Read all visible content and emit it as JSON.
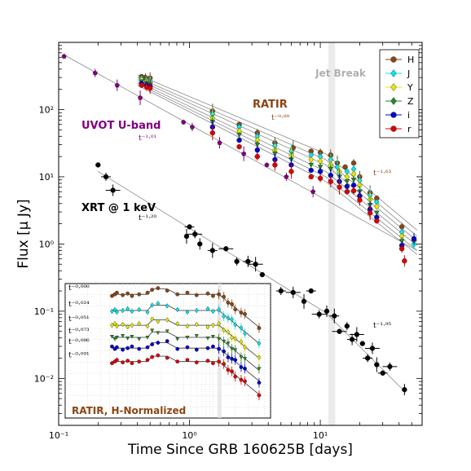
{
  "chart_data": {
    "type": "scatter",
    "xscale": "log",
    "yscale": "log",
    "xlim": [
      0.1,
      60
    ],
    "ylim": [
      0.002,
      1000
    ],
    "xlabel": "Time Since GRB 160625B [days]",
    "ylabel": "Flux [μ Jy]",
    "x_ticks": [
      0.1,
      1,
      10
    ],
    "x_tick_labels": [
      "10⁻¹",
      "10⁰",
      "10¹"
    ],
    "y_ticks": [
      0.01,
      0.1,
      1,
      10,
      100
    ],
    "y_tick_labels": [
      "10⁻²",
      "10⁻¹",
      "10⁰",
      "10¹",
      "10²"
    ],
    "jet_break": {
      "label": "Jet Break",
      "x_range": [
        11.5,
        13
      ]
    },
    "annotations": [
      {
        "text": "UVOT U-band",
        "color": "#800080"
      },
      {
        "text": "RATIR",
        "color": "#8b4513"
      },
      {
        "text": "XRT @ 1 keV",
        "color": "#000000"
      }
    ],
    "power_law_labels": [
      {
        "text": "t⁻¹·⁰¹",
        "color": "#800080"
      },
      {
        "text": "t⁻⁰·⁸⁸",
        "color": "#8b4513"
      },
      {
        "text": "t⁻¹·²⁰",
        "color": "#000000"
      },
      {
        "text": "t⁻¹·⁶³",
        "color": "#8b4513"
      },
      {
        "text": "t⁻¹·⁹⁵",
        "color": "#000000"
      }
    ],
    "legend": {
      "placement": "top-right",
      "entries": [
        {
          "name": "H",
          "color": "#8b4513"
        },
        {
          "name": "J",
          "color": "#00e5ee"
        },
        {
          "name": "Y",
          "color": "#e6e600"
        },
        {
          "name": "Z",
          "color": "#228b22"
        },
        {
          "name": "i",
          "color": "#0000cd"
        },
        {
          "name": "r",
          "color": "#dd0000"
        }
      ]
    },
    "fit_lines": [
      {
        "points": [
          [
            0.11,
            650
          ],
          [
            55,
            0.8
          ]
        ]
      },
      {
        "points": [
          [
            0.4,
            330
          ],
          [
            11,
            22
          ],
          [
            55,
            1.6
          ]
        ]
      },
      {
        "points": [
          [
            0.4,
            300
          ],
          [
            11,
            18
          ],
          [
            55,
            1.3
          ]
        ]
      },
      {
        "points": [
          [
            0.4,
            280
          ],
          [
            11,
            15
          ],
          [
            55,
            1.1
          ]
        ]
      },
      {
        "points": [
          [
            0.4,
            260
          ],
          [
            11,
            12
          ],
          [
            55,
            0.95
          ]
        ]
      },
      {
        "points": [
          [
            0.4,
            245
          ],
          [
            11,
            10
          ],
          [
            55,
            0.8
          ]
        ]
      },
      {
        "points": [
          [
            0.4,
            230
          ],
          [
            11,
            8.5
          ],
          [
            55,
            0.7
          ]
        ]
      },
      {
        "points": [
          [
            0.2,
            12
          ],
          [
            11,
            0.095
          ],
          [
            45,
            0.0062
          ]
        ]
      }
    ],
    "series": [
      {
        "name": "UVOT",
        "color": "#800080",
        "marker": "pentagon",
        "points": [
          [
            0.11,
            620
          ],
          [
            0.19,
            350
          ],
          [
            0.28,
            230
          ],
          [
            0.42,
            150
          ],
          [
            0.9,
            65
          ],
          [
            1.05,
            55
          ],
          [
            1.7,
            32
          ],
          [
            2.6,
            22
          ],
          [
            3.9,
            15
          ],
          [
            5.5,
            10
          ],
          [
            8.8,
            6
          ]
        ]
      },
      {
        "name": "XRT",
        "color": "#000000",
        "marker": "circle",
        "points": [
          [
            0.2,
            15
          ],
          [
            0.23,
            10
          ],
          [
            0.26,
            6.3
          ],
          [
            0.95,
            1.3
          ],
          [
            1.0,
            1.8
          ],
          [
            1.1,
            1.4
          ],
          [
            1.2,
            1.0
          ],
          [
            1.5,
            0.8
          ],
          [
            1.9,
            0.85
          ],
          [
            2.3,
            0.55
          ],
          [
            2.8,
            0.55
          ],
          [
            3.2,
            0.5
          ],
          [
            3.6,
            0.35
          ],
          [
            5.0,
            0.2
          ],
          [
            6.2,
            0.19
          ],
          [
            7.5,
            0.14
          ],
          [
            8.5,
            0.2
          ],
          [
            9.8,
            0.09
          ],
          [
            11.2,
            0.1
          ],
          [
            12.8,
            0.085
          ],
          [
            14.0,
            0.05
          ],
          [
            16.0,
            0.06
          ],
          [
            17.5,
            0.038
          ],
          [
            19.0,
            0.045
          ],
          [
            21.0,
            0.033
          ],
          [
            23.0,
            0.02
          ],
          [
            25.0,
            0.028
          ],
          [
            27.0,
            0.016
          ],
          [
            30.0,
            0.012
          ],
          [
            34.0,
            0.015
          ],
          [
            44.0,
            0.0068
          ]
        ]
      },
      {
        "name": "H",
        "color": "#8b4513",
        "marker": "circle",
        "points": [
          [
            0.43,
            310
          ],
          [
            0.46,
            300
          ],
          [
            0.5,
            295
          ],
          [
            1.5,
            95
          ],
          [
            2.4,
            60
          ],
          [
            3.3,
            45
          ],
          [
            4.5,
            32
          ],
          [
            6.2,
            27
          ],
          [
            8.5,
            24
          ],
          [
            10.0,
            23
          ],
          [
            12.0,
            21
          ],
          [
            13.5,
            16
          ],
          [
            15.5,
            14
          ],
          [
            18.0,
            16
          ],
          [
            20.0,
            10
          ],
          [
            24.0,
            5.8
          ],
          [
            27.0,
            4.8
          ],
          [
            42.0,
            1.8
          ],
          [
            52.0,
            1.15
          ]
        ]
      },
      {
        "name": "J",
        "color": "#00e5ee",
        "marker": "diamond",
        "points": [
          [
            0.43,
            290
          ],
          [
            0.47,
            275
          ],
          [
            0.5,
            265
          ],
          [
            1.5,
            85
          ],
          [
            2.4,
            55
          ],
          [
            3.3,
            40
          ],
          [
            4.5,
            29
          ],
          [
            6.0,
            24
          ],
          [
            8.5,
            21
          ],
          [
            10.0,
            20
          ],
          [
            12.0,
            18
          ],
          [
            13.5,
            14
          ],
          [
            16.0,
            12
          ],
          [
            18.0,
            13
          ],
          [
            20.0,
            8.8
          ],
          [
            24.0,
            5.3
          ],
          [
            27.0,
            4.2
          ],
          [
            42.0,
            1.5
          ],
          [
            52.0,
            1.0
          ]
        ]
      },
      {
        "name": "Y",
        "color": "#e6e600",
        "marker": "diamond",
        "points": [
          [
            0.43,
            275
          ],
          [
            0.47,
            260
          ],
          [
            0.5,
            250
          ],
          [
            1.5,
            75
          ],
          [
            2.4,
            48
          ],
          [
            3.3,
            35
          ],
          [
            4.5,
            25
          ],
          [
            6.0,
            21
          ],
          [
            8.5,
            18
          ],
          [
            10.0,
            17
          ],
          [
            12.0,
            15
          ],
          [
            14.0,
            12
          ],
          [
            16.0,
            10
          ],
          [
            18.0,
            11
          ],
          [
            20.0,
            7.5
          ],
          [
            24.0,
            4.6
          ],
          [
            27.0,
            3.6
          ],
          [
            42.0,
            1.3
          ]
        ]
      },
      {
        "name": "Z",
        "color": "#228b22",
        "marker": "triangle",
        "points": [
          [
            0.43,
            260
          ],
          [
            0.47,
            245
          ],
          [
            0.5,
            235
          ],
          [
            1.5,
            65
          ],
          [
            2.4,
            42
          ],
          [
            3.3,
            30
          ],
          [
            4.5,
            22
          ],
          [
            6.0,
            18
          ],
          [
            8.5,
            15
          ],
          [
            10.0,
            14
          ],
          [
            12.0,
            13
          ],
          [
            14.0,
            10
          ],
          [
            16.0,
            8.5
          ],
          [
            18.0,
            9.0
          ],
          [
            20.0,
            6.0
          ],
          [
            24.0,
            3.8
          ],
          [
            27.0,
            2.9
          ],
          [
            42.0,
            1.1
          ]
        ]
      },
      {
        "name": "i",
        "color": "#0000cd",
        "marker": "circle",
        "points": [
          [
            0.43,
            245
          ],
          [
            0.47,
            232
          ],
          [
            0.5,
            222
          ],
          [
            1.5,
            55
          ],
          [
            2.4,
            35
          ],
          [
            3.3,
            25
          ],
          [
            4.5,
            18
          ],
          [
            6.0,
            15
          ],
          [
            8.5,
            12.5
          ],
          [
            10.0,
            12
          ],
          [
            12.0,
            10.5
          ],
          [
            14.0,
            8.5
          ],
          [
            16.0,
            7.2
          ],
          [
            18.0,
            7.5
          ],
          [
            20.0,
            5.2
          ],
          [
            24.0,
            3.3
          ],
          [
            27.0,
            2.5
          ],
          [
            42.0,
            0.95
          ],
          [
            52.0,
            1.2
          ]
        ]
      },
      {
        "name": "r",
        "color": "#dd0000",
        "marker": "circle",
        "points": [
          [
            0.43,
            230
          ],
          [
            0.47,
            218
          ],
          [
            0.5,
            208
          ],
          [
            1.5,
            45
          ],
          [
            2.4,
            28
          ],
          [
            3.3,
            20
          ],
          [
            4.5,
            15
          ],
          [
            6.0,
            12
          ],
          [
            8.5,
            10
          ],
          [
            10.0,
            9.5
          ],
          [
            12.0,
            8.5
          ],
          [
            14.0,
            7.0
          ],
          [
            16.0,
            6.0
          ],
          [
            18.0,
            6.2
          ],
          [
            20.0,
            4.5
          ],
          [
            24.0,
            2.9
          ],
          [
            27.0,
            2.2
          ],
          [
            42.0,
            0.85
          ],
          [
            44.0,
            0.56
          ]
        ]
      }
    ],
    "inset": {
      "title": "RATIR, H-Normalized",
      "title_color": "#8b4513",
      "xscale": "log",
      "xlim": [
        0.1,
        60
      ],
      "offset_labels": [
        "t⁻⁰·⁰⁰⁰",
        "t⁻⁰·⁰²⁴",
        "t⁻⁰·⁰⁵¹",
        "t⁻⁰·⁰⁷³",
        "t⁻⁰·⁰⁸⁶",
        "t⁻⁰·⁰⁹¹"
      ],
      "bands": [
        {
          "name": "H",
          "color": "#8b4513",
          "level": 0.92
        },
        {
          "name": "J",
          "color": "#00e5ee",
          "level": 0.8
        },
        {
          "name": "Y",
          "color": "#e6e600",
          "level": 0.69
        },
        {
          "name": "Z",
          "color": "#228b22",
          "level": 0.6
        },
        {
          "name": "i",
          "color": "#0000cd",
          "level": 0.52
        },
        {
          "name": "r",
          "color": "#dd0000",
          "level": 0.42
        }
      ]
    }
  }
}
